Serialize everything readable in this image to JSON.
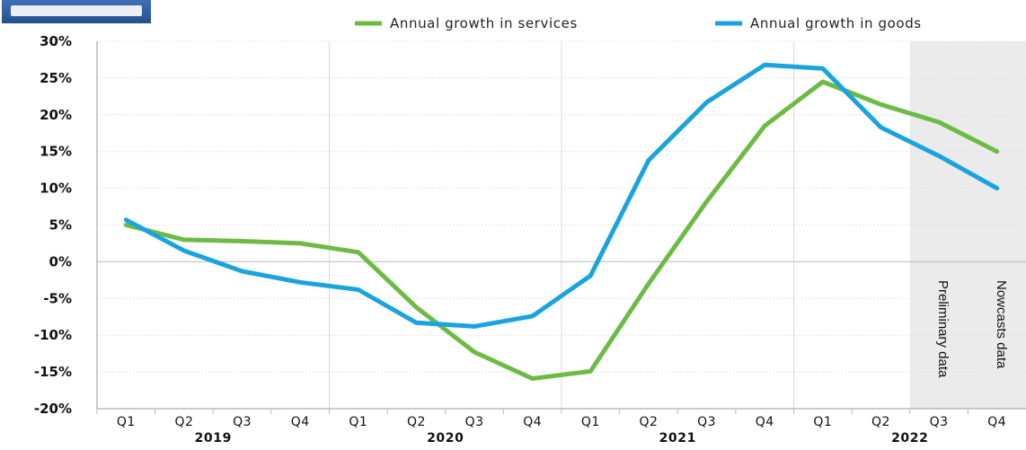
{
  "chart_data": {
    "type": "line",
    "categories": [
      "Q1",
      "Q2",
      "Q3",
      "Q4",
      "Q1",
      "Q2",
      "Q3",
      "Q4",
      "Q1",
      "Q2",
      "Q3",
      "Q4",
      "Q1",
      "Q2",
      "Q3",
      "Q4"
    ],
    "years": [
      {
        "label": "2019",
        "span": [
          0,
          3
        ]
      },
      {
        "label": "2020",
        "span": [
          4,
          7
        ]
      },
      {
        "label": "2021",
        "span": [
          8,
          11
        ]
      },
      {
        "label": "2022",
        "span": [
          12,
          15
        ]
      }
    ],
    "series": [
      {
        "name": "Annual growth in services",
        "color": "#6dbb45",
        "values": [
          5,
          3,
          2.8,
          2.5,
          1.3,
          -6.2,
          -12.3,
          -15.9,
          -14.9,
          -3,
          8.2,
          18.5,
          24.5,
          21.4,
          19,
          15
        ]
      },
      {
        "name": "Annual growth in goods",
        "color": "#1aa3df",
        "values": [
          5.7,
          1.5,
          -1.3,
          -2.8,
          -3.8,
          -8.3,
          -8.8,
          -7.4,
          -1.9,
          13.8,
          21.7,
          26.8,
          26.3,
          18.3,
          14.4,
          10
        ]
      }
    ],
    "yticks": [
      "30%",
      "25%",
      "20%",
      "15%",
      "10%",
      "5%",
      "0%",
      "-5%",
      "-10%",
      "-15%",
      "-20%"
    ],
    "ylim": [
      -20,
      30
    ],
    "grid": true,
    "legend_position": "top-right",
    "shaded_region": {
      "from_index": 14,
      "to_index": 15,
      "color": "#ebebeb"
    },
    "annotations": [
      "Preliminary data",
      "Nowcasts data"
    ]
  }
}
